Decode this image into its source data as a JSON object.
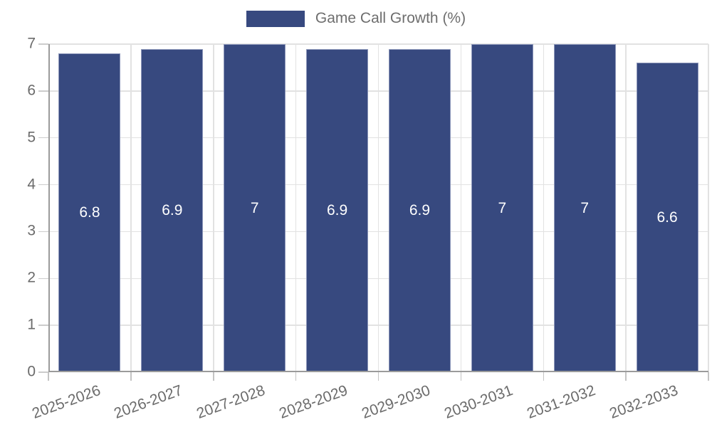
{
  "legend": {
    "label": "Game Call Growth (%)"
  },
  "colors": {
    "bar_fill": "#37497F",
    "bar_border": "#8d97ba",
    "grid_line": "#e2e2e2",
    "axis_line": "#9b9b9b",
    "tick_text": "#6b6b6b",
    "legend_text": "#6e6e6e",
    "value_label_text": "#ffffff"
  },
  "chart_data": {
    "type": "bar",
    "title": "",
    "xlabel": "",
    "ylabel": "",
    "categories": [
      "2025-2026",
      "2026-2027",
      "2027-2028",
      "2028-2029",
      "2029-2030",
      "2030-2031",
      "2031-2032",
      "2032-2033"
    ],
    "series": [
      {
        "name": "Game Call Growth (%)",
        "values": [
          6.8,
          6.9,
          7,
          6.9,
          6.9,
          7,
          7,
          6.6
        ],
        "value_labels": [
          "6.8",
          "6.9",
          "7",
          "6.9",
          "6.9",
          "7",
          "7",
          "6.6"
        ]
      }
    ],
    "ylim": [
      0,
      7
    ],
    "ytick_labels": [
      "0",
      "1",
      "2",
      "3",
      "4",
      "5",
      "6",
      "7"
    ],
    "grid": true,
    "legend_position": "top-center",
    "bar_value_labels_inside": true,
    "xtick_label_rotation_deg": -20
  }
}
